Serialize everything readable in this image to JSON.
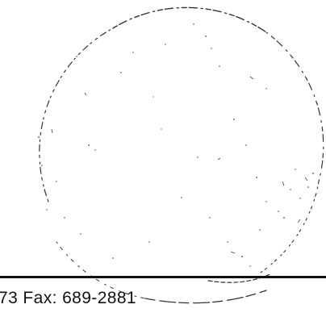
{
  "document": {
    "footer_contact": "73  Fax: 689-2881"
  },
  "colors": {
    "ink": "#111111",
    "paper": "#ffffff"
  }
}
